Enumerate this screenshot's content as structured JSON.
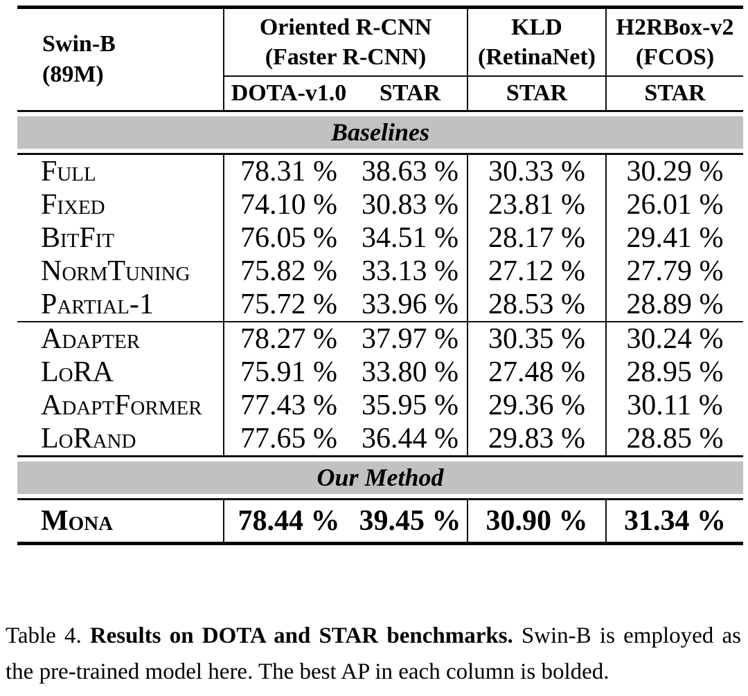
{
  "table": {
    "model": {
      "line1": "Swin-B",
      "line2": "(89M)"
    },
    "groups": {
      "g1": {
        "line1": "Oriented R-CNN",
        "line2": "(Faster R-CNN)"
      },
      "g2": {
        "line1": "KLD",
        "line2": "(RetinaNet)"
      },
      "g3": {
        "line1": "H2RBox-v2",
        "line2": "(FCOS)"
      }
    },
    "subheaders": [
      "DOTA-v1.0",
      "STAR",
      "STAR",
      "STAR"
    ],
    "bands": {
      "baselines": "Baselines",
      "our_method": "Our Method"
    },
    "rows1": [
      {
        "label": "Full",
        "values": [
          "78.31 %",
          "38.63 %",
          "30.33 %",
          "30.29 %"
        ]
      },
      {
        "label": "Fixed",
        "values": [
          "74.10 %",
          "30.83 %",
          "23.81 %",
          "26.01 %"
        ]
      },
      {
        "label": "BitFit",
        "values": [
          "76.05 %",
          "34.51 %",
          "28.17 %",
          "29.41 %"
        ]
      },
      {
        "label": "NormTuning",
        "values": [
          "75.82 %",
          "33.13 %",
          "27.12 %",
          "27.79 %"
        ]
      },
      {
        "label": "Partial-1",
        "values": [
          "75.72 %",
          "33.96 %",
          "28.53 %",
          "28.89 %"
        ]
      }
    ],
    "rows2": [
      {
        "label": "Adapter",
        "values": [
          "78.27 %",
          "37.97 %",
          "30.35 %",
          "30.24 %"
        ]
      },
      {
        "label": "LoRA",
        "values": [
          "75.91 %",
          "33.80 %",
          "27.48 %",
          "28.95 %"
        ]
      },
      {
        "label": "AdaptFormer",
        "values": [
          "77.43 %",
          "35.95 %",
          "29.36 %",
          "30.11 %"
        ]
      },
      {
        "label": "LoRand",
        "values": [
          "77.65 %",
          "36.44 %",
          "29.83 %",
          "28.85 %"
        ]
      }
    ],
    "our_row": {
      "label": "Mona",
      "values": [
        "78.44 %",
        "39.45 %",
        "30.90 %",
        "31.34 %"
      ]
    }
  },
  "caption": {
    "prefix": "Table 4.",
    "bold": "Results on DOTA and STAR benchmarks.",
    "rest": "Swin-B is employed as the pre-trained model here. The best AP in each column is bolded."
  },
  "colors": {
    "band_bg": "#c1c1c1",
    "rule": "#000000"
  }
}
